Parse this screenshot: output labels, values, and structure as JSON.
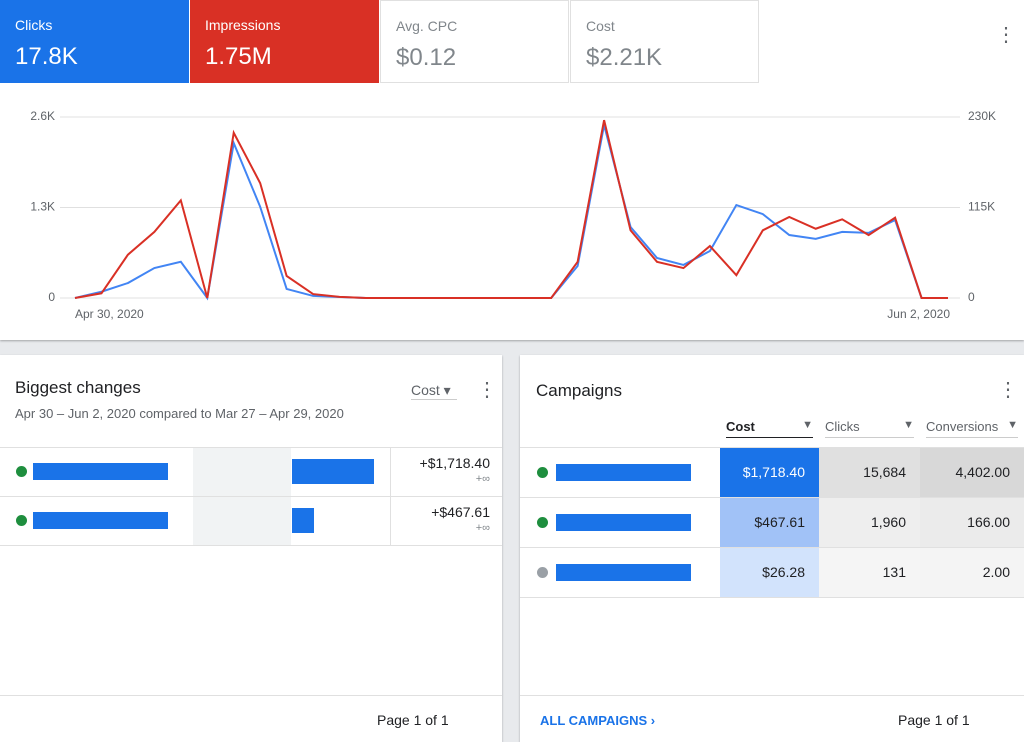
{
  "metrics": [
    {
      "label": "Clicks",
      "value": "17.8K"
    },
    {
      "label": "Impressions",
      "value": "1.75M"
    },
    {
      "label": "Avg. CPC",
      "value": "$0.12"
    },
    {
      "label": "Cost",
      "value": "$2.21K"
    }
  ],
  "chart_data": {
    "type": "line",
    "categories": [
      "Apr 30, 2020",
      null,
      null,
      null,
      null,
      null,
      null,
      null,
      null,
      null,
      null,
      null,
      null,
      null,
      null,
      null,
      null,
      null,
      null,
      null,
      null,
      null,
      null,
      null,
      null,
      null,
      null,
      null,
      null,
      null,
      null,
      null,
      null,
      "Jun 2, 2020"
    ],
    "series": [
      {
        "name": "Clicks",
        "color": "#4285f4",
        "values": [
          0,
          90,
          215,
          430,
          520,
          0,
          2225,
          1310,
          130,
          30,
          15,
          0,
          0,
          0,
          0,
          0,
          0,
          0,
          0,
          460,
          2485,
          1020,
          575,
          475,
          675,
          1335,
          1205,
          905,
          850,
          950,
          935,
          1120,
          0,
          0
        ]
      },
      {
        "name": "Impressions",
        "color": "#d93025",
        "axis": "y2",
        "values": [
          0,
          6000,
          55000,
          84000,
          124000,
          0,
          210000,
          146000,
          28000,
          5000,
          1500,
          0,
          0,
          0,
          0,
          0,
          0,
          0,
          0,
          46000,
          226000,
          86000,
          46000,
          38000,
          66000,
          29000,
          86000,
          103000,
          88000,
          100000,
          80000,
          102000,
          0,
          0
        ]
      }
    ],
    "ylim": [
      0,
      2600
    ],
    "yticks": [
      0,
      {
        "value": 1300,
        "label": "1.3K"
      },
      {
        "value": 2600,
        "label": "2.6K"
      }
    ],
    "y2lim": [
      0,
      230000
    ],
    "y2ticks": [
      0,
      {
        "value": 115000,
        "label": "115K"
      },
      {
        "value": 230000,
        "label": "230K"
      }
    ],
    "grid": true
  },
  "biggest_changes": {
    "title": "Biggest changes",
    "subtitle": "Apr 30 – Jun 2, 2020 compared to Mar 27 – Apr 29, 2020",
    "metric": "Cost",
    "rows": [
      {
        "change": 1718.4,
        "change_label": "+$1,718.40",
        "percent": "+∞"
      },
      {
        "change": 467.61,
        "change_label": "+$467.61",
        "percent": "+∞"
      }
    ],
    "footer": "Page 1 of 1"
  },
  "campaigns": {
    "title": "Campaigns",
    "columns": [
      "Cost",
      "Clicks",
      "Conversions"
    ],
    "rows": [
      [
        "$1,718.40",
        "15,684",
        "4,402.00"
      ],
      [
        "$467.61",
        "1,960",
        "166.00"
      ],
      [
        "$26.28",
        "131",
        "2.00"
      ]
    ],
    "footer": "Page 1 of 1",
    "link": "ALL CAMPAIGNS"
  }
}
